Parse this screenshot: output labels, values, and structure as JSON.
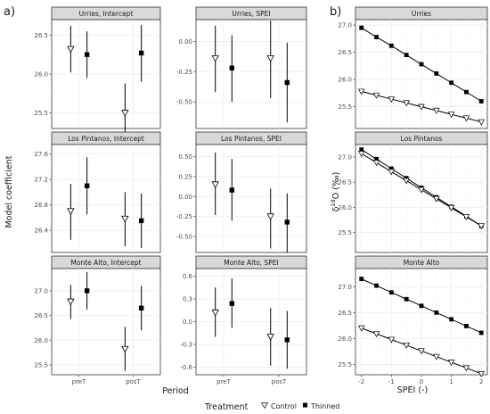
{
  "labels": {
    "panel_a": "a)",
    "panel_b": "b)",
    "ylabel_a": "Model coefficient",
    "xlabel_a": "Period",
    "ylabel_b": "δ18O (‰)",
    "xlabel_b": "SPEI (-)",
    "legend_title": "Treatment",
    "legend_control": "Control",
    "legend_thinned": "Thinned"
  },
  "colors": {
    "control_fill": "#ffffff",
    "thinned_fill": "#000000",
    "strip": "#d9d9d9",
    "grid": "#ebebeb"
  },
  "chart_data": [
    {
      "type": "scatter",
      "panel": "a",
      "title": "Urries, Intercept",
      "categories": [
        "preT",
        "posT"
      ],
      "ylim": [
        25.3,
        26.7
      ],
      "yticks": [
        25.5,
        26.0,
        26.5
      ],
      "ytick_labels": [
        "25.5",
        "26.0",
        "26.5"
      ],
      "series": [
        {
          "name": "Control",
          "values": [
            26.32,
            25.5
          ],
          "lower": [
            26.02,
            25.13
          ],
          "upper": [
            26.62,
            25.88
          ]
        },
        {
          "name": "Thinned",
          "values": [
            26.25,
            26.27
          ],
          "lower": [
            25.95,
            25.9
          ],
          "upper": [
            26.55,
            26.63
          ]
        }
      ]
    },
    {
      "type": "scatter",
      "panel": "a",
      "title": "Urries, SPEI",
      "categories": [
        "preT",
        "posT"
      ],
      "ylim": [
        -0.72,
        0.18
      ],
      "yticks": [
        -0.5,
        -0.25,
        0.0
      ],
      "ytick_labels": [
        "-0.50",
        "-0.25",
        "0.00"
      ],
      "series": [
        {
          "name": "Control",
          "values": [
            -0.14,
            -0.14
          ],
          "lower": [
            -0.42,
            -0.47
          ],
          "upper": [
            0.13,
            0.17
          ]
        },
        {
          "name": "Thinned",
          "values": [
            -0.22,
            -0.34
          ],
          "lower": [
            -0.5,
            -0.67
          ],
          "upper": [
            0.05,
            -0.01
          ]
        }
      ]
    },
    {
      "type": "scatter",
      "panel": "a",
      "title": "Los Pintanos, Intercept",
      "categories": [
        "preT",
        "posT"
      ],
      "ylim": [
        26.05,
        27.75
      ],
      "yticks": [
        26.4,
        26.8,
        27.2,
        27.6
      ],
      "ytick_labels": [
        "26.4",
        "26.8",
        "27.2",
        "27.6"
      ],
      "series": [
        {
          "name": "Control",
          "values": [
            26.7,
            26.58
          ],
          "lower": [
            26.25,
            26.15
          ],
          "upper": [
            27.13,
            27.0
          ]
        },
        {
          "name": "Thinned",
          "values": [
            27.1,
            26.55
          ],
          "lower": [
            26.65,
            26.12
          ],
          "upper": [
            27.55,
            26.98
          ]
        }
      ]
    },
    {
      "type": "scatter",
      "panel": "a",
      "title": "Los Pintanos, SPEI",
      "categories": [
        "preT",
        "posT"
      ],
      "ylim": [
        -0.7,
        0.65
      ],
      "yticks": [
        -0.5,
        -0.25,
        0.0,
        0.25,
        0.5
      ],
      "ytick_labels": [
        "-0.50",
        "-0.25",
        "0.00",
        "0.25",
        "0.50"
      ],
      "series": [
        {
          "name": "Control",
          "values": [
            0.15,
            -0.25
          ],
          "lower": [
            -0.23,
            -0.65
          ],
          "upper": [
            0.55,
            0.1
          ]
        },
        {
          "name": "Thinned",
          "values": [
            0.08,
            -0.32
          ],
          "lower": [
            -0.3,
            -0.7
          ],
          "upper": [
            0.47,
            0.04
          ]
        }
      ]
    },
    {
      "type": "scatter",
      "panel": "a",
      "title": "Monte Alto, Intercept",
      "categories": [
        "preT",
        "posT"
      ],
      "ylim": [
        25.3,
        27.45
      ],
      "yticks": [
        25.5,
        26.0,
        26.5,
        27.0
      ],
      "ytick_labels": [
        "25.5",
        "26.0",
        "26.5",
        "27.0"
      ],
      "series": [
        {
          "name": "Control",
          "values": [
            26.78,
            25.82
          ],
          "lower": [
            26.43,
            25.38
          ],
          "upper": [
            27.12,
            26.27
          ]
        },
        {
          "name": "Thinned",
          "values": [
            27.0,
            26.65
          ],
          "lower": [
            26.62,
            26.2
          ],
          "upper": [
            27.38,
            27.1
          ]
        }
      ]
    },
    {
      "type": "scatter",
      "panel": "a",
      "title": "Monte Alto, SPEI",
      "categories": [
        "preT",
        "posT"
      ],
      "ylim": [
        -0.7,
        0.7
      ],
      "yticks": [
        -0.6,
        -0.3,
        0.0,
        0.3,
        0.6
      ],
      "ytick_labels": [
        "-0.6",
        "-0.3",
        "0.0",
        "0.3",
        "0.6"
      ],
      "series": [
        {
          "name": "Control",
          "values": [
            0.12,
            -0.2
          ],
          "lower": [
            -0.2,
            -0.58
          ],
          "upper": [
            0.45,
            0.18
          ]
        },
        {
          "name": "Thinned",
          "values": [
            0.24,
            -0.24
          ],
          "lower": [
            -0.08,
            -0.62
          ],
          "upper": [
            0.57,
            0.14
          ]
        }
      ]
    },
    {
      "type": "line",
      "panel": "b",
      "title": "Urries",
      "x": [
        -2,
        -1.5,
        -1,
        -0.5,
        0,
        0.5,
        1,
        1.5,
        2
      ],
      "xlim": [
        -2.2,
        2.2
      ],
      "xticks": [
        -2,
        -1,
        0,
        1,
        2
      ],
      "xtick_labels": [
        "-2",
        "-1",
        "0",
        "1",
        "2"
      ],
      "ylim": [
        25.1,
        27.1
      ],
      "yticks": [
        25.5,
        26.0,
        26.5,
        27.0
      ],
      "ytick_labels": [
        "25.5",
        "26.0",
        "26.5",
        "27.0"
      ],
      "series": [
        {
          "name": "Thinned",
          "values": [
            26.95,
            26.78,
            26.62,
            26.45,
            26.28,
            26.11,
            25.94,
            25.77,
            25.6
          ]
        },
        {
          "name": "Control",
          "values": [
            25.78,
            25.71,
            25.64,
            25.57,
            25.5,
            25.43,
            25.36,
            25.29,
            25.22
          ]
        }
      ]
    },
    {
      "type": "line",
      "panel": "b",
      "title": "Los Pintanos",
      "x": [
        -2,
        -1.5,
        -1,
        -0.5,
        0,
        0.5,
        1,
        1.5,
        2
      ],
      "xlim": [
        -2.2,
        2.2
      ],
      "xticks": [
        -2,
        -1,
        0,
        1,
        2
      ],
      "xtick_labels": [
        "-2",
        "-1",
        "0",
        "1",
        "2"
      ],
      "ylim": [
        25.1,
        27.25
      ],
      "yticks": [
        25.5,
        26.0,
        26.5,
        27.0
      ],
      "ytick_labels": [
        "25.5",
        "26.0",
        "26.5",
        "27.0"
      ],
      "series": [
        {
          "name": "Thinned",
          "values": [
            27.15,
            26.96,
            26.77,
            26.58,
            26.39,
            26.2,
            26.01,
            25.82,
            25.63
          ]
        },
        {
          "name": "Control",
          "values": [
            27.07,
            26.89,
            26.71,
            26.53,
            26.35,
            26.17,
            25.99,
            25.81,
            25.63
          ]
        }
      ]
    },
    {
      "type": "line",
      "panel": "b",
      "title": "Monte Alto",
      "x": [
        -2,
        -1.5,
        -1,
        -0.5,
        0,
        0.5,
        1,
        1.5,
        2
      ],
      "xlim": [
        -2.2,
        2.2
      ],
      "xticks": [
        -2,
        -1,
        0,
        1,
        2
      ],
      "xtick_labels": [
        "-2",
        "-1",
        "0",
        "1",
        "2"
      ],
      "ylim": [
        25.3,
        27.35
      ],
      "yticks": [
        25.5,
        26.0,
        26.5,
        27.0
      ],
      "ytick_labels": [
        "25.5",
        "26.0",
        "26.5",
        "27.0"
      ],
      "series": [
        {
          "name": "Thinned",
          "values": [
            27.15,
            27.02,
            26.89,
            26.76,
            26.63,
            26.5,
            26.37,
            26.24,
            26.11
          ]
        },
        {
          "name": "Control",
          "values": [
            26.2,
            26.09,
            25.98,
            25.87,
            25.76,
            25.65,
            25.54,
            25.43,
            25.32
          ]
        }
      ]
    }
  ]
}
